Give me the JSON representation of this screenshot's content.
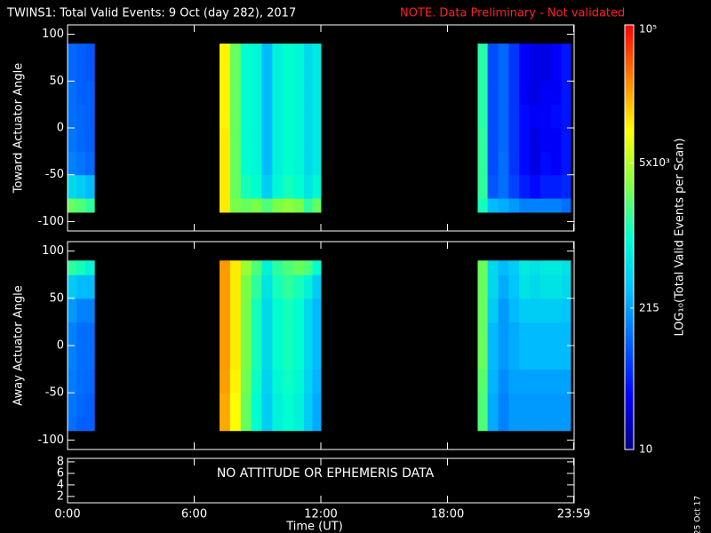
{
  "title": "TWINS1: Total Valid Events:  9 Oct (day 282), 2017",
  "note": "NOTE. Data Preliminary - Not validated",
  "date_stamp": "25 Oct 17",
  "colorbar": {
    "label": "LOG₁₀(Total Valid Events per Scan)",
    "log": true,
    "lim": [
      10,
      100000
    ],
    "ticks": [
      10,
      215,
      {
        "value": 5000,
        "label": "5x10³"
      },
      {
        "value": 100000,
        "label": "10⁵"
      }
    ],
    "colors": [
      "#000080",
      "#0000ff",
      "#0060ff",
      "#00c0ff",
      "#00ffd0",
      "#80ff40",
      "#ffff00",
      "#ff8000",
      "#ff0000"
    ]
  },
  "chart_data": [
    {
      "type": "heatmap",
      "ylabel": "Toward Actuator Angle",
      "ylim": [
        -110,
        110
      ],
      "yticks": [
        -100,
        -50,
        0,
        50,
        100
      ],
      "xbins": [
        0,
        0.42,
        0.84,
        1.27,
        7.2,
        7.7,
        8.2,
        8.7,
        9.2,
        9.7,
        10.2,
        10.7,
        11.2,
        11.6,
        12.0,
        19.43,
        19.9,
        20.4,
        20.9,
        21.4,
        21.9,
        22.4,
        22.9,
        23.4,
        23.83
      ],
      "ybins": [
        -90,
        -75,
        -50,
        -25,
        0,
        25,
        50,
        75,
        90
      ],
      "z": [
        [
          2500,
          2000,
          1500,
          null,
          12000,
          3000,
          2500,
          3000,
          2000,
          3000,
          3500,
          3000,
          1500,
          2500,
          null,
          1200,
          300,
          250,
          200,
          150,
          150,
          150,
          150,
          120
        ],
        [
          500,
          400,
          300,
          null,
          12000,
          2500,
          1200,
          1000,
          400,
          900,
          1200,
          1000,
          600,
          900,
          null,
          1500,
          90,
          120,
          70,
          45,
          35,
          45,
          45,
          50
        ],
        [
          150,
          130,
          110,
          null,
          12000,
          2500,
          1000,
          900,
          300,
          800,
          1000,
          900,
          500,
          700,
          null,
          1500,
          80,
          120,
          60,
          35,
          25,
          35,
          30,
          40
        ],
        [
          130,
          110,
          100,
          null,
          12000,
          2500,
          1000,
          900,
          300,
          800,
          1000,
          900,
          500,
          700,
          null,
          1500,
          80,
          110,
          60,
          35,
          25,
          30,
          30,
          40
        ],
        [
          120,
          110,
          100,
          null,
          11000,
          2500,
          1000,
          900,
          300,
          800,
          1000,
          900,
          500,
          700,
          null,
          1400,
          80,
          110,
          60,
          35,
          30,
          30,
          35,
          40
        ],
        [
          120,
          100,
          100,
          null,
          11000,
          2500,
          1000,
          900,
          300,
          800,
          1000,
          900,
          500,
          700,
          null,
          1400,
          80,
          110,
          60,
          30,
          25,
          30,
          30,
          40
        ],
        [
          110,
          100,
          90,
          null,
          11000,
          2500,
          1000,
          900,
          300,
          800,
          1000,
          900,
          500,
          700,
          null,
          1400,
          80,
          110,
          60,
          30,
          25,
          25,
          30,
          40
        ],
        [
          110,
          100,
          90,
          null,
          11000,
          2500,
          1000,
          900,
          300,
          800,
          1000,
          900,
          500,
          700,
          null,
          1400,
          80,
          110,
          60,
          30,
          25,
          25,
          30,
          40
        ]
      ]
    },
    {
      "type": "heatmap",
      "ylabel": "Away Actuator Angle",
      "ylim": [
        -110,
        110
      ],
      "yticks": [
        -100,
        -50,
        0,
        50,
        100
      ],
      "xbins": [
        0,
        0.42,
        0.84,
        1.27,
        7.2,
        7.7,
        8.2,
        8.7,
        9.2,
        9.7,
        10.2,
        10.7,
        11.2,
        11.6,
        12.0,
        19.43,
        19.9,
        20.4,
        20.9,
        21.4,
        21.9,
        22.4,
        22.9,
        23.4,
        23.83
      ],
      "ybins": [
        -90,
        -75,
        -50,
        -25,
        0,
        25,
        50,
        75,
        90
      ],
      "z": [
        [
          120,
          100,
          100,
          null,
          22000,
          10000,
          2500,
          1000,
          400,
          800,
          1000,
          800,
          400,
          250,
          null,
          2000,
          250,
          150,
          200,
          200,
          200,
          200,
          200,
          200
        ],
        [
          130,
          110,
          100,
          null,
          22000,
          10000,
          2500,
          1000,
          400,
          800,
          1000,
          800,
          400,
          250,
          null,
          2000,
          250,
          150,
          200,
          200,
          200,
          200,
          200,
          200
        ],
        [
          140,
          120,
          110,
          null,
          24000,
          11000,
          2800,
          1100,
          450,
          900,
          1100,
          900,
          450,
          280,
          null,
          2200,
          280,
          170,
          220,
          220,
          220,
          220,
          220,
          220
        ],
        [
          150,
          120,
          120,
          null,
          25000,
          12000,
          3000,
          1200,
          500,
          1000,
          1200,
          1000,
          500,
          300,
          null,
          2500,
          300,
          200,
          250,
          300,
          300,
          300,
          300,
          300
        ],
        [
          150,
          120,
          120,
          null,
          25000,
          12000,
          3000,
          1200,
          500,
          1000,
          1200,
          1000,
          500,
          300,
          null,
          2500,
          300,
          200,
          250,
          300,
          300,
          300,
          300,
          300
        ],
        [
          200,
          150,
          150,
          null,
          25000,
          12000,
          3000,
          1200,
          500,
          1000,
          1200,
          1000,
          500,
          300,
          null,
          2500,
          400,
          200,
          300,
          400,
          400,
          400,
          400,
          350
        ],
        [
          400,
          300,
          300,
          null,
          25000,
          12000,
          3000,
          1500,
          600,
          1200,
          1500,
          1200,
          800,
          400,
          null,
          2500,
          500,
          250,
          350,
          600,
          500,
          600,
          600,
          500
        ],
        [
          1500,
          1200,
          800,
          null,
          25000,
          12000,
          4000,
          2000,
          800,
          1500,
          2000,
          2500,
          2000,
          1000,
          null,
          2500,
          500,
          300,
          400,
          700,
          600,
          700,
          700,
          600
        ]
      ]
    },
    {
      "type": "text",
      "annotation": "NO ATTITUDE OR EPHEMERIS DATA",
      "ylim": [
        0.9,
        8.6
      ],
      "yticks": [
        2,
        4,
        6,
        8
      ],
      "xlabel": "Time (UT)",
      "xlim": [
        0,
        24
      ],
      "xticks": [
        {
          "value": 0,
          "label": "0:00"
        },
        {
          "value": 6,
          "label": "6:00"
        },
        {
          "value": 12,
          "label": "12:00"
        },
        {
          "value": 18,
          "label": "18:00"
        },
        {
          "value": 23.98,
          "label": "23:59"
        }
      ]
    }
  ]
}
